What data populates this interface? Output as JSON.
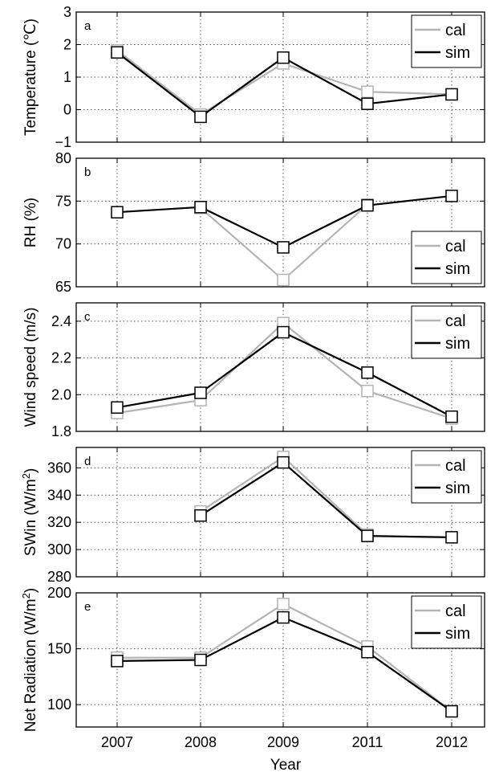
{
  "colors": {
    "cal": "#b4b4b4",
    "sim": "#000000",
    "grid": "#555555"
  },
  "xlabel": "Year",
  "legend": {
    "cal": "cal",
    "sim": "sim"
  },
  "chart_data": [
    {
      "type": "line",
      "panel": "a",
      "ylabel": "Temperature (℃)",
      "categories": [
        "2007",
        "2008",
        "2009",
        "2011",
        "2012"
      ],
      "ylim": [
        -1,
        3
      ],
      "yticks": [
        -1,
        0,
        1,
        2,
        3
      ],
      "ytick_labels": [
        "−1",
        "0",
        "1",
        "2",
        "3"
      ],
      "grid": true,
      "legend_position": "top-right",
      "series": [
        {
          "name": "cal",
          "values": [
            1.82,
            -0.15,
            1.42,
            0.55,
            0.47
          ]
        },
        {
          "name": "sim",
          "values": [
            1.76,
            -0.22,
            1.6,
            0.18,
            0.47
          ]
        }
      ]
    },
    {
      "type": "line",
      "panel": "b",
      "ylabel": "RH (%)",
      "categories": [
        "2007",
        "2008",
        "2009",
        "2011",
        "2012"
      ],
      "ylim": [
        65,
        80
      ],
      "yticks": [
        65,
        70,
        75,
        80
      ],
      "ytick_labels": [
        "65",
        "70",
        "75",
        "80"
      ],
      "grid": true,
      "legend_position": "bottom-right",
      "series": [
        {
          "name": "cal",
          "values": [
            null,
            74.2,
            65.8,
            74.6,
            null
          ]
        },
        {
          "name": "sim",
          "values": [
            73.7,
            74.3,
            69.6,
            74.5,
            75.6
          ]
        }
      ]
    },
    {
      "type": "line",
      "panel": "c",
      "ylabel": "Wind speed (m/s)",
      "categories": [
        "2007",
        "2008",
        "2009",
        "2011",
        "2012"
      ],
      "ylim": [
        1.8,
        2.5
      ],
      "yticks": [
        1.8,
        2.0,
        2.2,
        2.4
      ],
      "ytick_labels": [
        "1.8",
        "2.0",
        "2.2",
        "2.4"
      ],
      "grid": true,
      "legend_position": "top-right",
      "series": [
        {
          "name": "cal",
          "values": [
            1.9,
            1.97,
            2.39,
            2.02,
            1.87
          ]
        },
        {
          "name": "sim",
          "values": [
            1.93,
            2.01,
            2.34,
            2.12,
            1.88
          ]
        }
      ]
    },
    {
      "type": "line",
      "panel": "d",
      "ylabel": "SWin (W/m²)",
      "categories": [
        "2007",
        "2008",
        "2009",
        "2011",
        "2012"
      ],
      "ylim": [
        280,
        375
      ],
      "yticks": [
        280,
        300,
        320,
        340,
        360
      ],
      "ytick_labels": [
        "280",
        "300",
        "320",
        "340",
        "360"
      ],
      "grid": true,
      "legend_position": "top-right",
      "series": [
        {
          "name": "cal",
          "values": [
            null,
            328,
            368,
            311,
            null
          ]
        },
        {
          "name": "sim",
          "values": [
            null,
            325,
            364,
            310,
            309
          ]
        }
      ]
    },
    {
      "type": "line",
      "panel": "e",
      "ylabel": "Net Radiation (W/m²)",
      "categories": [
        "2007",
        "2008",
        "2009",
        "2011",
        "2012"
      ],
      "ylim": [
        80,
        200
      ],
      "yticks": [
        100,
        150,
        200
      ],
      "ytick_labels": [
        "100",
        "150",
        "200"
      ],
      "grid": true,
      "legend_position": "top-right",
      "series": [
        {
          "name": "cal",
          "values": [
            142,
            142,
            190,
            152,
            94
          ]
        },
        {
          "name": "sim",
          "values": [
            139,
            140,
            178,
            147,
            94
          ]
        }
      ]
    }
  ]
}
